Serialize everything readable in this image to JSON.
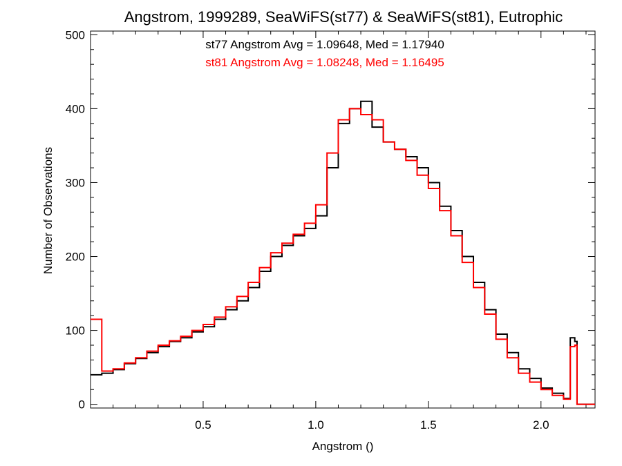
{
  "chart_data": {
    "type": "line",
    "title": "Angstrom, 1999289, SeaWiFS(st77) & SeaWiFS(st81), Eutrophic",
    "xlabel": "Angstrom ()",
    "ylabel": "Number of Observations",
    "xlim": [
      0.0,
      2.24
    ],
    "ylim": [
      -5,
      505
    ],
    "xticks": [
      0.5,
      1.0,
      1.5,
      2.0
    ],
    "xtick_labels": [
      "0.5",
      "1.0",
      "1.5",
      "2.0"
    ],
    "yticks": [
      0,
      100,
      200,
      300,
      400,
      500
    ],
    "ytick_labels": [
      "0",
      "100",
      "200",
      "300",
      "400",
      "500"
    ],
    "grid": false,
    "annotations": [
      {
        "text": "st77 Angstrom Avg = 1.09648, Med = 1.17940",
        "color": "#000000"
      },
      {
        "text": "st81 Angstrom Avg = 1.08248, Med = 1.16495",
        "color": "#ff0000"
      }
    ],
    "series": [
      {
        "name": "st77",
        "color": "#000000",
        "step": true,
        "x": [
          0.0,
          0.05,
          0.1,
          0.15,
          0.2,
          0.25,
          0.3,
          0.35,
          0.4,
          0.45,
          0.5,
          0.55,
          0.6,
          0.65,
          0.7,
          0.75,
          0.8,
          0.85,
          0.9,
          0.95,
          1.0,
          1.05,
          1.1,
          1.15,
          1.2,
          1.25,
          1.3,
          1.35,
          1.4,
          1.45,
          1.5,
          1.55,
          1.6,
          1.65,
          1.7,
          1.75,
          1.8,
          1.85,
          1.9,
          1.95,
          2.0,
          2.05,
          2.1,
          2.13,
          2.15,
          2.16,
          2.2,
          2.24
        ],
        "y": [
          40,
          42,
          47,
          55,
          62,
          70,
          78,
          85,
          90,
          98,
          105,
          115,
          128,
          140,
          158,
          180,
          200,
          215,
          228,
          238,
          255,
          320,
          380,
          400,
          410,
          375,
          355,
          345,
          335,
          320,
          300,
          268,
          235,
          200,
          165,
          128,
          95,
          70,
          48,
          35,
          22,
          15,
          8,
          90,
          85,
          0,
          0,
          0
        ]
      },
      {
        "name": "st81",
        "color": "#ff0000",
        "step": true,
        "x": [
          0.0,
          0.05,
          0.1,
          0.15,
          0.2,
          0.25,
          0.3,
          0.35,
          0.4,
          0.45,
          0.5,
          0.55,
          0.6,
          0.65,
          0.7,
          0.75,
          0.8,
          0.85,
          0.9,
          0.95,
          1.0,
          1.05,
          1.1,
          1.15,
          1.2,
          1.25,
          1.3,
          1.35,
          1.4,
          1.45,
          1.5,
          1.55,
          1.6,
          1.65,
          1.7,
          1.75,
          1.8,
          1.85,
          1.9,
          1.95,
          2.0,
          2.05,
          2.1,
          2.13,
          2.15,
          2.16,
          2.2,
          2.24
        ],
        "y": [
          115,
          45,
          48,
          56,
          63,
          72,
          80,
          86,
          92,
          100,
          108,
          118,
          132,
          146,
          165,
          185,
          205,
          218,
          230,
          245,
          270,
          340,
          385,
          400,
          392,
          385,
          355,
          345,
          330,
          310,
          292,
          262,
          228,
          192,
          158,
          122,
          88,
          63,
          42,
          30,
          20,
          12,
          7,
          78,
          80,
          0,
          0,
          0
        ]
      }
    ]
  }
}
